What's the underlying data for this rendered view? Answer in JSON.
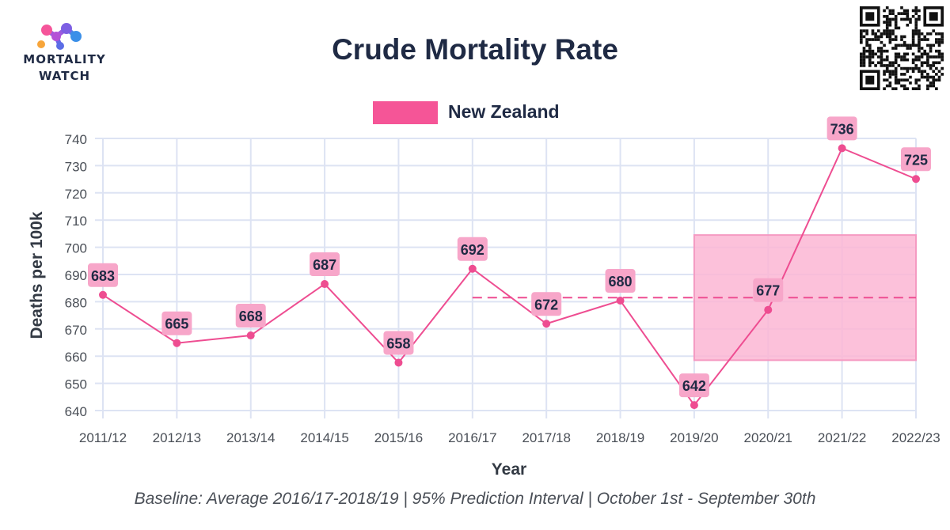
{
  "brand": {
    "line1": "MORTALITY",
    "line2": "WATCH"
  },
  "colors": {
    "series": "#ee4d91",
    "label_bg": "#f7a6c9",
    "band": "#fbb6d3",
    "grid": "#dde3f3",
    "text": "#1f2a44"
  },
  "chart_data": {
    "type": "line",
    "title": "Crude Mortality Rate",
    "xlabel": "Year",
    "ylabel": "Deaths per 100k",
    "ylim": [
      640,
      740
    ],
    "yticks": [
      640,
      650,
      660,
      670,
      680,
      690,
      700,
      710,
      720,
      730,
      740
    ],
    "categories": [
      "2011/12",
      "2012/13",
      "2013/14",
      "2014/15",
      "2015/16",
      "2016/17",
      "2017/18",
      "2018/19",
      "2019/20",
      "2020/21",
      "2021/22",
      "2022/23"
    ],
    "series": [
      {
        "name": "New Zealand",
        "values": [
          682.5,
          664.8,
          667.6,
          686.5,
          657.6,
          692.1,
          671.9,
          680.4,
          642.0,
          677.0,
          736.4,
          725.1
        ],
        "labels": [
          "683",
          "665",
          "668",
          "687",
          "658",
          "692",
          "672",
          "680",
          "642",
          "677",
          "736",
          "725"
        ]
      }
    ],
    "baseline": {
      "value": 681.5,
      "from": "2016/17",
      "to": "2022/23"
    },
    "prediction_interval": {
      "from": "2019/20",
      "to": "2022/23",
      "lower": 658.5,
      "upper": 704.5
    },
    "legend": "top-center",
    "grid": true,
    "caption": "Baseline: Average 2016/17-2018/19 | 95% Prediction Interval | October 1st - September 30th"
  }
}
